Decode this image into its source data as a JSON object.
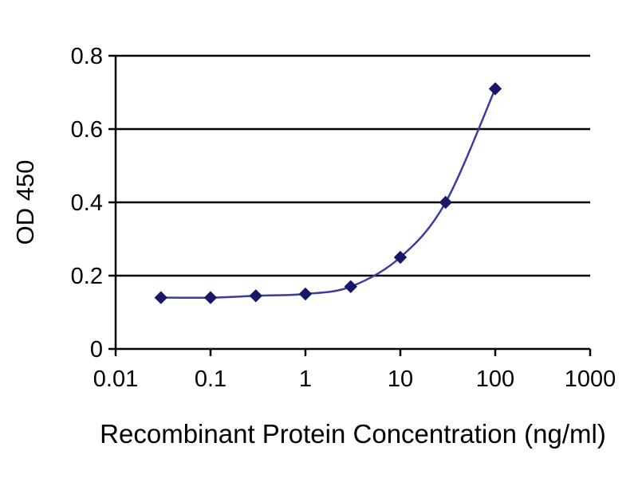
{
  "chart_data": {
    "type": "line",
    "x_scale": "log",
    "x": [
      0.03,
      0.1,
      0.3,
      1,
      3,
      10,
      30,
      100
    ],
    "y": [
      0.14,
      0.14,
      0.145,
      0.15,
      0.17,
      0.25,
      0.4,
      0.71
    ],
    "title": "",
    "xlabel": "Recombinant Protein Concentration (ng/ml)",
    "ylabel": "OD 450",
    "xlim": [
      0.01,
      1000
    ],
    "ylim": [
      0,
      0.8
    ],
    "x_ticks": [
      0.01,
      0.1,
      1,
      10,
      100,
      1000
    ],
    "x_tick_labels": [
      "0.01",
      "0.1",
      "1",
      "10",
      "100",
      "1000"
    ],
    "y_ticks": [
      0,
      0.2,
      0.4,
      0.6,
      0.8
    ],
    "y_tick_labels": [
      "0",
      "0.2",
      "0.4",
      "0.6",
      "0.8"
    ],
    "grid": "horizontal",
    "legend": "none",
    "marker": "diamond",
    "line_color": "#3c3c9e",
    "marker_color": "#181868",
    "grid_color": "#000000",
    "axis_color": "#000000",
    "text_color": "#000000",
    "background": "#ffffff"
  }
}
